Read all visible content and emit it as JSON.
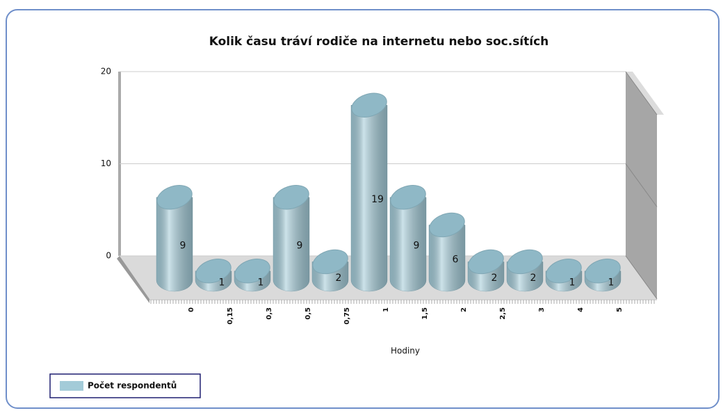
{
  "chart_data": {
    "type": "bar",
    "title": "Kolik času tráví rodiče na internetu nebo soc.sítích",
    "x_label": "Hodiny",
    "categories": [
      "0",
      "0,15",
      "0,3",
      "0,5",
      "0,75",
      "1",
      "1,5",
      "2",
      "2,5",
      "3",
      "4",
      "5"
    ],
    "series": [
      {
        "name": "Počet respondentů",
        "color": "#a3cbd8",
        "values": [
          9,
          1,
          1,
          9,
          2,
          19,
          9,
          6,
          2,
          2,
          1,
          1
        ]
      }
    ],
    "ylim": [
      0,
      20
    ],
    "yticks": [
      0,
      10,
      20
    ],
    "grid": true,
    "legend": "bottom-left"
  }
}
